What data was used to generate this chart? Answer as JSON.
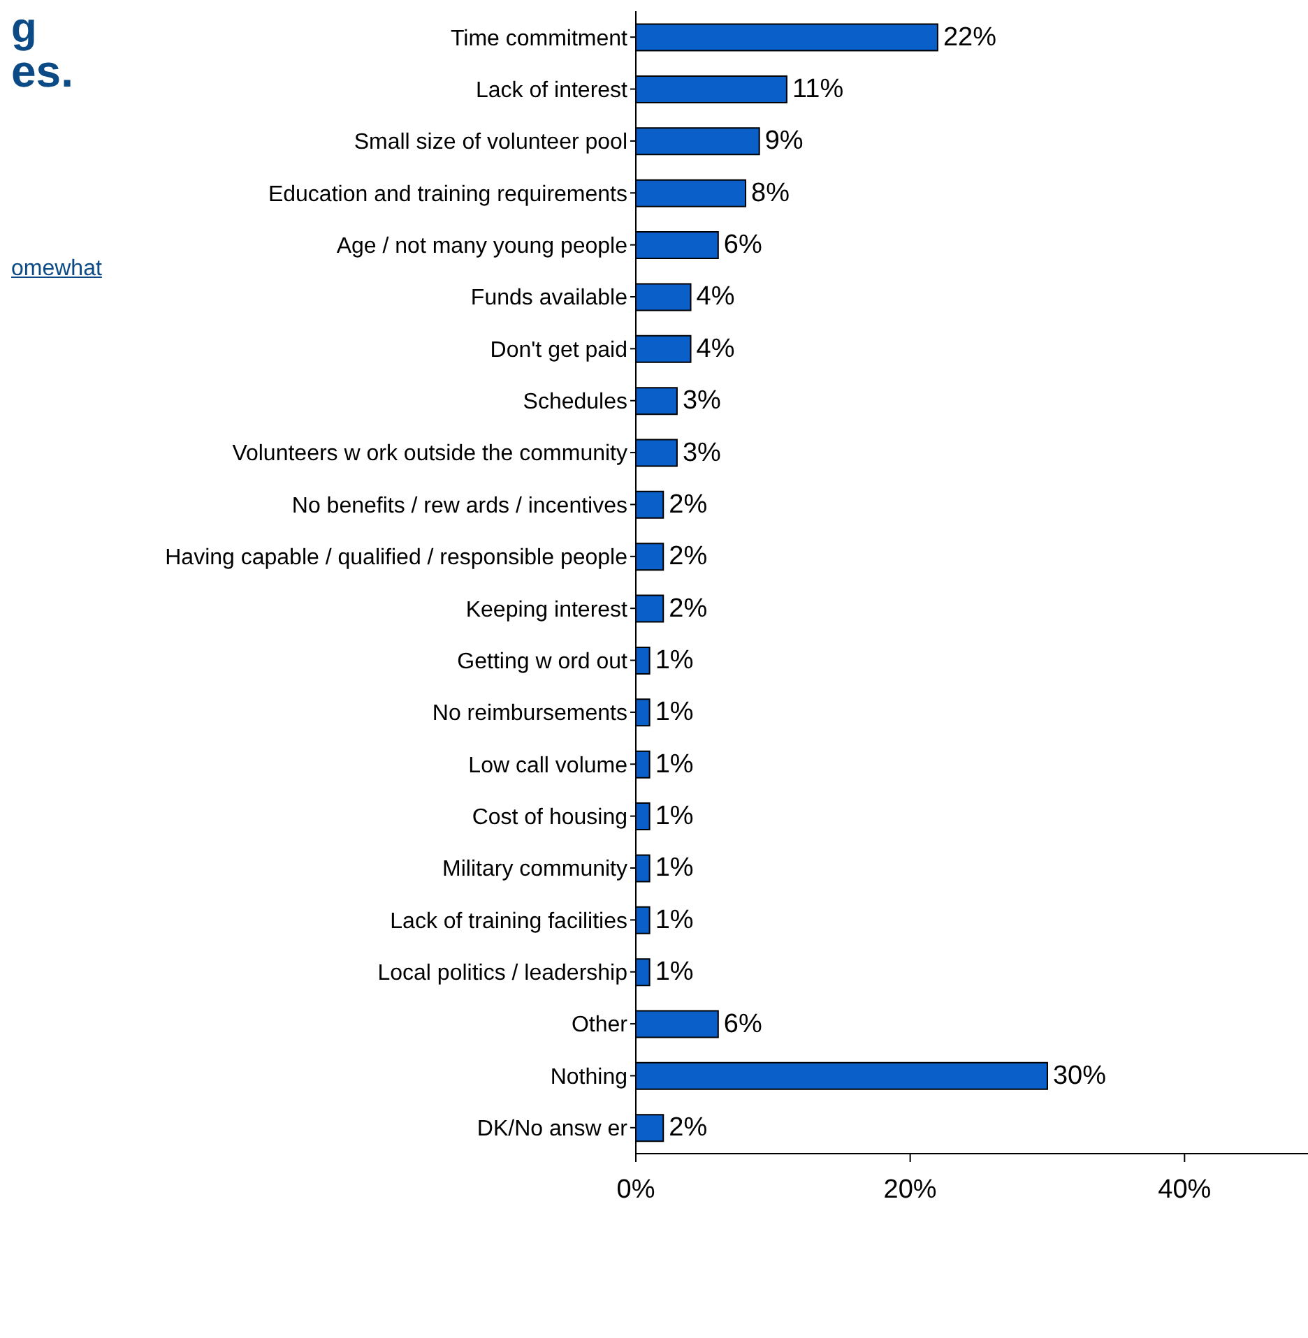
{
  "chart_data": {
    "type": "bar",
    "orientation": "horizontal",
    "annotations": [
      "g",
      "es.",
      "omewhat"
    ],
    "categories": [
      "Time commitment",
      "Lack of interest",
      "Small size of volunteer pool",
      "Education and training requirements",
      "Age / not many young people",
      "Funds available",
      "Don't get paid",
      "Schedules",
      "Volunteers w ork outside the community",
      "No benefits / rew ards / incentives",
      "Having capable / qualified / responsible people",
      "Keeping interest",
      "Getting w ord out",
      "No reimbursements",
      "Low  call volume",
      "Cost of housing",
      "Military community",
      "Lack of training facilities",
      "Local politics / leadership",
      "Other",
      "Nothing",
      "DK/No answ er"
    ],
    "values": [
      22,
      11,
      9,
      8,
      6,
      4,
      4,
      3,
      3,
      2,
      2,
      2,
      1,
      1,
      1,
      1,
      1,
      1,
      1,
      6,
      30,
      2
    ],
    "value_labels": [
      "22%",
      "11%",
      "9%",
      "8%",
      "6%",
      "4%",
      "4%",
      "3%",
      "3%",
      "2%",
      "2%",
      "2%",
      "1%",
      "1%",
      "1%",
      "1%",
      "1%",
      "1%",
      "1%",
      "6%",
      "30%",
      "2%"
    ],
    "color": "#0a5fc8",
    "xlim": [
      0,
      49
    ],
    "xticks": [
      {
        "value": 0,
        "label": "0%"
      },
      {
        "value": 20,
        "label": "20%"
      },
      {
        "value": 40,
        "label": "40%"
      }
    ],
    "grid": false,
    "legend": false
  }
}
